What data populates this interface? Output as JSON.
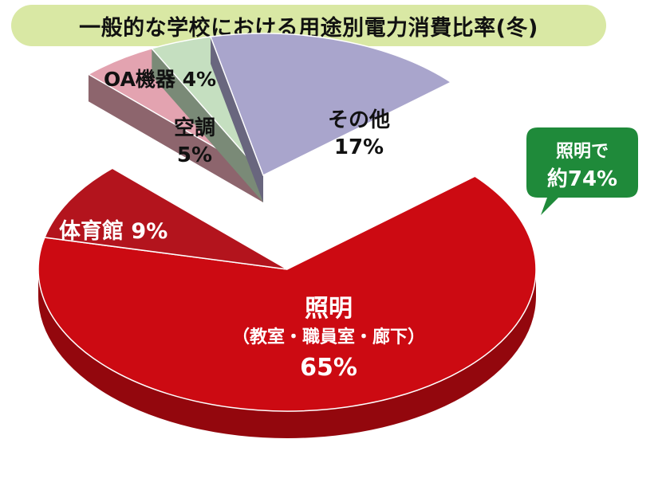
{
  "chart_data": {
    "type": "pie",
    "title": "一般的な学校における用途別電力消費比率(冬)",
    "slices": [
      {
        "label": "照明",
        "sublabel": "（教室・職員室・廊下）",
        "value": 65,
        "display": "65%",
        "color": "#cc0a12",
        "exploded": false
      },
      {
        "label": "体育館",
        "value": 9,
        "display": "9%",
        "color": "#b3141d",
        "exploded": false
      },
      {
        "label": "空調",
        "value": 5,
        "display": "5%",
        "color": "#e3a3b0",
        "exploded": true
      },
      {
        "label": "OA機器",
        "value": 4,
        "display": "4%",
        "color": "#c5dfc0",
        "exploded": true
      },
      {
        "label": "その他",
        "value": 17,
        "display": "17%",
        "color": "#a9a5cc",
        "exploded": true
      }
    ],
    "callout": {
      "line1": "照明で",
      "line2": "約74%",
      "color": "#1f8a3a"
    }
  }
}
